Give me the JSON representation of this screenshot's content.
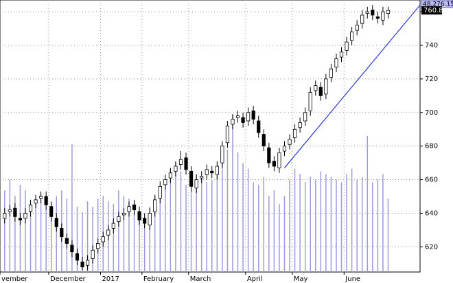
{
  "chart_data": {
    "type": "candlestick",
    "categories": [
      "vember",
      null,
      null,
      null,
      null,
      null,
      null,
      null,
      null,
      "December",
      null,
      null,
      null,
      null,
      null,
      null,
      null,
      null,
      null,
      "2017",
      null,
      null,
      null,
      null,
      null,
      null,
      null,
      "February",
      null,
      null,
      null,
      null,
      null,
      null,
      null,
      null,
      "March",
      null,
      null,
      null,
      null,
      null,
      null,
      null,
      null,
      null,
      null,
      "April",
      null,
      null,
      null,
      null,
      null,
      null,
      null,
      null,
      "May",
      null,
      null,
      null,
      null,
      null,
      null,
      null,
      null,
      null,
      "June",
      null,
      null,
      null,
      null,
      null,
      null,
      null,
      null
    ],
    "open": [
      637,
      641,
      643,
      637,
      637,
      641,
      646,
      649,
      650,
      644,
      637,
      631,
      625,
      621,
      616,
      611,
      609,
      613,
      619,
      623,
      627,
      631,
      635,
      639,
      641,
      645,
      641,
      637,
      633,
      641,
      649,
      657,
      661,
      665,
      669,
      673,
      665,
      655,
      661,
      663,
      665,
      663,
      670,
      682,
      693,
      697,
      697,
      695,
      701,
      695,
      687,
      679,
      671,
      667,
      677,
      681,
      685,
      691,
      695,
      701,
      713,
      715,
      711,
      721,
      727,
      733,
      737,
      743,
      749,
      753,
      759,
      761,
      757,
      755,
      759
    ],
    "high": [
      643,
      645,
      646,
      640,
      643,
      648,
      651,
      653,
      653,
      647,
      640,
      634,
      628,
      624,
      619,
      614,
      615,
      621,
      625,
      629,
      633,
      637,
      641,
      643,
      647,
      648,
      644,
      640,
      643,
      651,
      659,
      663,
      667,
      671,
      677,
      676,
      668,
      663,
      665,
      669,
      668,
      671,
      683,
      695,
      699,
      701,
      700,
      703,
      704,
      698,
      690,
      682,
      674,
      679,
      683,
      687,
      693,
      697,
      703,
      715,
      719,
      718,
      723,
      729,
      735,
      739,
      745,
      751,
      755,
      761,
      763,
      764,
      760,
      763,
      763
    ],
    "low": [
      634,
      638,
      635,
      633,
      634,
      638,
      643,
      646,
      642,
      635,
      629,
      623,
      619,
      614,
      609,
      606,
      606,
      610,
      616,
      620,
      624,
      628,
      632,
      636,
      638,
      639,
      633,
      631,
      630,
      638,
      646,
      654,
      658,
      662,
      666,
      663,
      653,
      652,
      658,
      660,
      661,
      660,
      667,
      679,
      690,
      694,
      691,
      692,
      693,
      685,
      677,
      667,
      665,
      664,
      674,
      678,
      682,
      688,
      692,
      698,
      710,
      707,
      708,
      718,
      724,
      730,
      734,
      740,
      746,
      750,
      756,
      755,
      753,
      752,
      756
    ],
    "close": [
      640,
      642,
      638,
      636,
      640,
      645,
      648,
      650,
      645,
      638,
      632,
      626,
      622,
      617,
      612,
      608,
      612,
      618,
      622,
      626,
      630,
      634,
      638,
      640,
      644,
      642,
      636,
      634,
      640,
      648,
      656,
      660,
      664,
      668,
      672,
      666,
      656,
      660,
      662,
      666,
      664,
      668,
      680,
      692,
      696,
      698,
      694,
      700,
      696,
      688,
      680,
      670,
      668,
      676,
      680,
      684,
      690,
      694,
      700,
      712,
      716,
      710,
      720,
      726,
      732,
      736,
      742,
      748,
      752,
      758,
      760,
      758,
      756,
      760,
      760.8
    ],
    "volume": [
      30,
      34,
      28,
      32,
      30,
      26,
      27,
      29,
      24,
      25,
      28,
      30,
      27,
      47,
      24,
      22,
      26,
      24,
      27,
      28,
      26,
      25,
      30,
      28,
      27,
      26,
      22,
      20,
      24,
      28,
      30,
      34,
      38,
      40,
      37,
      32,
      30,
      36,
      35,
      33,
      34,
      38,
      42,
      45,
      58,
      44,
      40,
      38,
      33,
      32,
      35,
      28,
      30,
      25,
      28,
      34,
      38,
      36,
      33,
      35,
      34,
      37,
      36,
      35,
      34,
      33,
      36,
      38,
      34,
      35,
      50,
      33,
      34,
      36,
      27
    ],
    "volume_color": "#9c9cdc",
    "volume_lim": [
      0,
      100
    ],
    "ylim": [
      605,
      767
    ],
    "yticks": [
      620,
      640,
      660,
      680,
      700,
      720,
      740,
      760
    ],
    "grid": true,
    "volume_tag": "48,276.15",
    "price_tag": "760.8",
    "trendline": {
      "x": [
        54,
        80.2
      ],
      "y": [
        667,
        764
      ],
      "color": "#2a3ad8"
    }
  }
}
